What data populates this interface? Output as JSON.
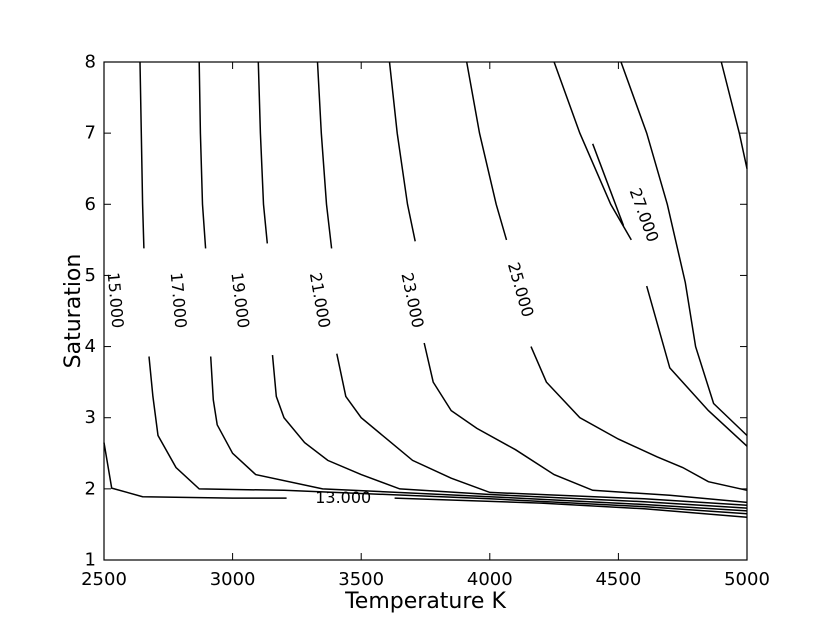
{
  "chart_data": {
    "type": "contour",
    "title": "",
    "xlabel": "Temperature K",
    "ylabel": "Saturation",
    "xlim": [
      2500,
      5000
    ],
    "ylim": [
      1,
      8
    ],
    "grid": false,
    "x_ticks": [
      2500,
      3000,
      3500,
      4000,
      4500,
      5000
    ],
    "y_ticks": [
      1,
      2,
      3,
      4,
      5,
      6,
      7,
      8
    ],
    "x_tick_labels": [
      "2500",
      "3000",
      "3500",
      "4000",
      "4500",
      "5000"
    ],
    "y_tick_labels": [
      "1",
      "2",
      "3",
      "4",
      "5",
      "6",
      "7",
      "8"
    ],
    "contours": [
      {
        "level": "13.000",
        "label": {
          "text": "13.000",
          "at": [
            3430,
            1.88
          ],
          "angle": 0
        },
        "segments": [
          [
            [
              3210,
              1.87
            ],
            [
              3000,
              1.87
            ],
            [
              2650,
              1.89
            ],
            [
              2530,
              2.01
            ],
            [
              2500,
              2.65
            ]
          ],
          [
            [
              3630,
              1.87
            ],
            [
              4200,
              1.8
            ],
            [
              4600,
              1.72
            ],
            [
              5000,
              1.6
            ]
          ]
        ]
      },
      {
        "level": "15.000",
        "label": {
          "text": "15.000",
          "at": [
            2545,
            4.65
          ],
          "angle": 85
        },
        "segments": [
          [
            [
              2640,
              8.0
            ],
            [
              2645,
              7.0
            ],
            [
              2650,
              6.0
            ],
            [
              2655,
              5.38
            ]
          ],
          [
            [
              2675,
              3.86
            ],
            [
              2690,
              3.3
            ],
            [
              2710,
              2.75
            ],
            [
              2780,
              2.3
            ],
            [
              2870,
              2.0
            ],
            [
              3200,
              1.98
            ],
            [
              4000,
              1.86
            ],
            [
              4600,
              1.75
            ],
            [
              5000,
              1.65
            ]
          ]
        ]
      },
      {
        "level": "17.000",
        "label": {
          "text": "17.000",
          "at": [
            2790,
            4.65
          ],
          "angle": 85
        },
        "segments": [
          [
            [
              2870,
              8.0
            ],
            [
              2875,
              7.0
            ],
            [
              2883,
              6.0
            ],
            [
              2895,
              5.38
            ]
          ],
          [
            [
              2915,
              3.86
            ],
            [
              2925,
              3.25
            ],
            [
              2940,
              2.9
            ],
            [
              3000,
              2.5
            ],
            [
              3090,
              2.2
            ],
            [
              3350,
              2.0
            ],
            [
              4000,
              1.89
            ],
            [
              4600,
              1.78
            ],
            [
              5000,
              1.69
            ]
          ]
        ]
      },
      {
        "level": "19.000",
        "label": {
          "text": "19.000",
          "at": [
            3030,
            4.65
          ],
          "angle": 83
        },
        "segments": [
          [
            [
              3100,
              8.0
            ],
            [
              3108,
              7.0
            ],
            [
              3120,
              6.0
            ],
            [
              3135,
              5.45
            ]
          ],
          [
            [
              3155,
              3.88
            ],
            [
              3170,
              3.3
            ],
            [
              3200,
              3.0
            ],
            [
              3280,
              2.65
            ],
            [
              3370,
              2.4
            ],
            [
              3500,
              2.2
            ],
            [
              3650,
              2.0
            ],
            [
              4000,
              1.92
            ],
            [
              4600,
              1.82
            ],
            [
              5000,
              1.73
            ]
          ]
        ]
      },
      {
        "level": "21.000",
        "label": {
          "text": "21.000",
          "at": [
            3340,
            4.65
          ],
          "angle": 80
        },
        "segments": [
          [
            [
              3330,
              8.0
            ],
            [
              3345,
              7.0
            ],
            [
              3365,
              6.0
            ],
            [
              3385,
              5.38
            ]
          ],
          [
            [
              3405,
              3.9
            ],
            [
              3440,
              3.3
            ],
            [
              3500,
              3.0
            ],
            [
              3600,
              2.7
            ],
            [
              3700,
              2.4
            ],
            [
              3850,
              2.15
            ],
            [
              4000,
              1.95
            ],
            [
              4600,
              1.86
            ],
            [
              5000,
              1.77
            ]
          ]
        ]
      },
      {
        "level": "23.000",
        "label": {
          "text": "23.000",
          "at": [
            3700,
            4.65
          ],
          "angle": 78
        },
        "segments": [
          [
            [
              3610,
              8.0
            ],
            [
              3640,
              7.0
            ],
            [
              3680,
              6.0
            ],
            [
              3710,
              5.48
            ]
          ],
          [
            [
              3745,
              4.05
            ],
            [
              3780,
              3.5
            ],
            [
              3850,
              3.1
            ],
            [
              3950,
              2.85
            ],
            [
              4100,
              2.55
            ],
            [
              4250,
              2.2
            ],
            [
              4400,
              1.98
            ],
            [
              4700,
              1.91
            ],
            [
              5000,
              1.81
            ]
          ]
        ]
      },
      {
        "level": "25.000",
        "label": {
          "text": "25.000",
          "at": [
            4120,
            4.8
          ],
          "angle": 74
        },
        "segments": [
          [
            [
              3910,
              8.0
            ],
            [
              3960,
              7.0
            ],
            [
              4025,
              6.0
            ],
            [
              4065,
              5.5
            ]
          ],
          [
            [
              4160,
              4.0
            ],
            [
              4220,
              3.5
            ],
            [
              4350,
              3.0
            ],
            [
              4500,
              2.7
            ],
            [
              4650,
              2.45
            ],
            [
              4750,
              2.3
            ],
            [
              4850,
              2.1
            ],
            [
              5000,
              1.98
            ]
          ]
        ]
      },
      {
        "level": "27.000",
        "label": {
          "text": "27.000",
          "at": [
            4600,
            5.85
          ],
          "angle": 70
        },
        "segments": [
          [
            [
              4250,
              8.0
            ],
            [
              4350,
              7.0
            ],
            [
              4470,
              6.0
            ],
            [
              4550,
              5.5
            ]
          ],
          [
            [
              4400,
              6.85
            ],
            [
              4520,
              5.7
            ]
          ],
          [
            [
              4610,
              4.85
            ],
            [
              4700,
              3.7
            ],
            [
              4850,
              3.1
            ],
            [
              5000,
              2.6
            ]
          ]
        ]
      },
      {
        "level": "",
        "segments": [
          [
            [
              4510,
              8.0
            ],
            [
              4610,
              7.0
            ],
            [
              4690,
              6.0
            ],
            [
              4760,
              4.9
            ],
            [
              4800,
              4.0
            ],
            [
              4870,
              3.2
            ],
            [
              5000,
              2.75
            ]
          ]
        ]
      },
      {
        "level": "",
        "segments": [
          [
            [
              4900,
              8.0
            ],
            [
              4970,
              7.0
            ],
            [
              5000,
              6.5
            ]
          ]
        ]
      }
    ]
  }
}
